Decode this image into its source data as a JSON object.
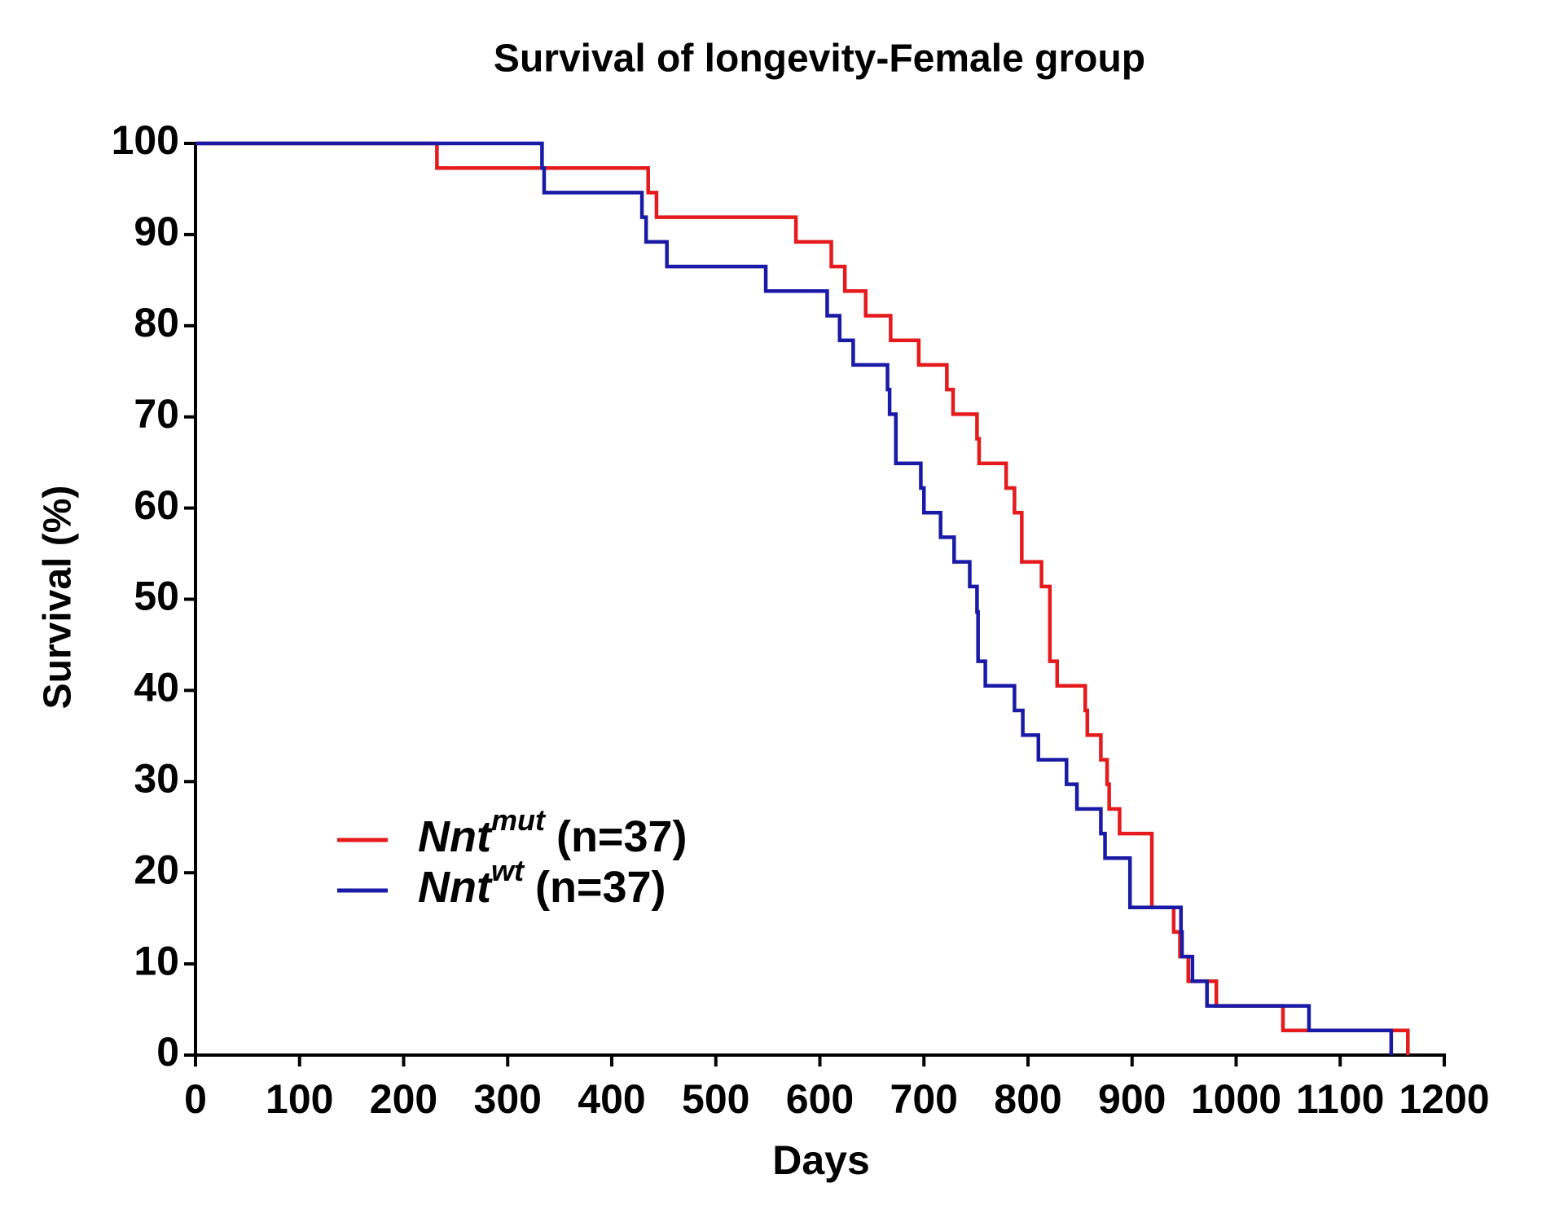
{
  "chart_data": {
    "type": "step",
    "title": "Survival of longevity-Female group",
    "x_label": "Days",
    "y_label": "Survival (%)",
    "xlim": [
      0,
      1200
    ],
    "ylim": [
      0,
      100
    ],
    "xticks": [
      0,
      100,
      200,
      300,
      400,
      500,
      600,
      700,
      800,
      900,
      1000,
      1100,
      1200
    ],
    "yticks": [
      0,
      10,
      20,
      30,
      40,
      50,
      60,
      70,
      80,
      90,
      100
    ],
    "legend": "lower left",
    "series": [
      {
        "name": {
          "base": "Nnt",
          "sup": "mut",
          "suffix": "(n=37)"
        },
        "color": "#e41a1c",
        "x": [
          0,
          232,
          435,
          443,
          577,
          611,
          624,
          644,
          668,
          695,
          722,
          728,
          751,
          753,
          779,
          787,
          794,
          813,
          821,
          828,
          855,
          857,
          870,
          876,
          878,
          888,
          919,
          940,
          946,
          954,
          981,
          1045,
          1165
        ],
        "values": [
          100,
          97.3,
          94.6,
          91.9,
          89.2,
          86.5,
          83.8,
          81.1,
          78.4,
          75.7,
          73.0,
          70.3,
          67.6,
          64.9,
          62.2,
          59.5,
          54.1,
          51.4,
          43.2,
          40.5,
          37.8,
          35.1,
          32.4,
          29.7,
          27.0,
          24.3,
          16.2,
          13.5,
          10.8,
          8.1,
          5.4,
          2.7,
          0
        ]
      },
      {
        "name": {
          "base": "Nnt",
          "sup": "wt",
          "suffix": "(n=37)"
        },
        "color": "#1a1aa6",
        "x": [
          0,
          333,
          335,
          429,
          433,
          453,
          548,
          607,
          619,
          632,
          665,
          667,
          673,
          697,
          700,
          716,
          729,
          744,
          751,
          752,
          759,
          787,
          795,
          810,
          837,
          847,
          870,
          874,
          898,
          947,
          948,
          958,
          972,
          1070,
          1149
        ],
        "values": [
          100,
          97.3,
          94.6,
          91.9,
          89.2,
          86.5,
          83.8,
          81.1,
          78.4,
          75.7,
          73.0,
          70.3,
          64.9,
          62.2,
          59.5,
          56.8,
          54.1,
          51.4,
          48.6,
          43.2,
          40.5,
          37.8,
          35.1,
          32.4,
          29.7,
          27.0,
          24.3,
          21.6,
          16.2,
          13.5,
          10.8,
          8.1,
          5.4,
          2.7,
          0
        ]
      }
    ]
  }
}
